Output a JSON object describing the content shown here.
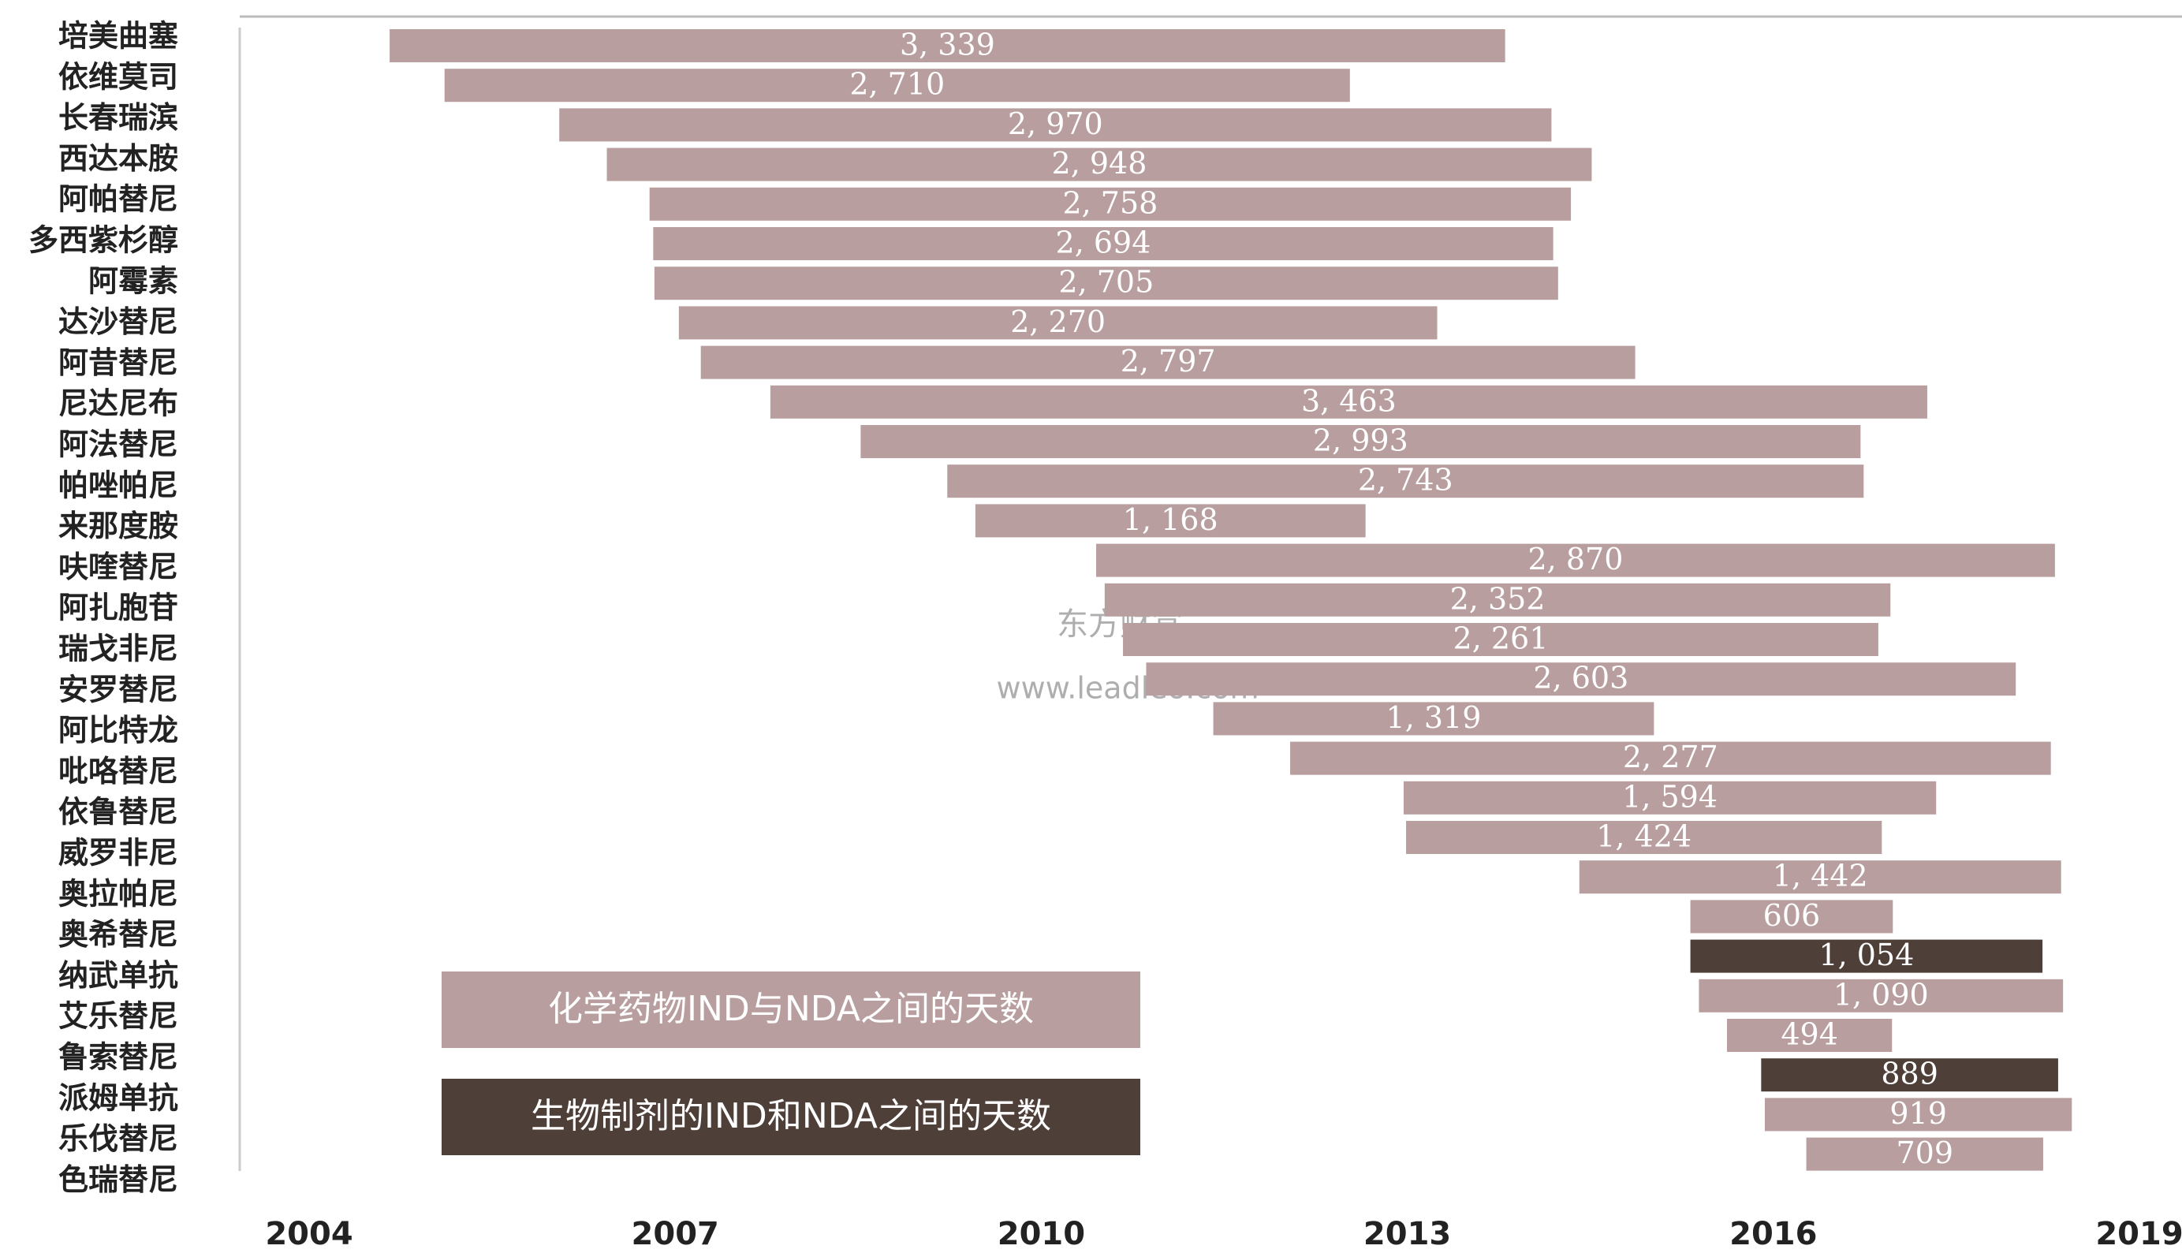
{
  "chart_data": {
    "type": "gantt",
    "categories": [
      "培美曲塞",
      "依维莫司",
      "长春瑞滨",
      "西达本胺",
      "阿帕替尼",
      "多西紫杉醇",
      "阿霉素",
      "达沙替尼",
      "阿昔替尼",
      "尼达尼布",
      "阿法替尼",
      "帕唑帕尼",
      "来那度胺",
      "呋喹替尼",
      "阿扎胞苷",
      "瑞戈非尼",
      "安罗替尼",
      "阿比特龙",
      "吡咯替尼",
      "依鲁替尼",
      "威罗非尼",
      "奥拉帕尼",
      "奥希替尼",
      "纳武单抗",
      "艾乐替尼",
      "鲁索替尼",
      "派姆单抗",
      "乐伐替尼",
      "色瑞替尼"
    ],
    "start": [
      2004.66,
      2005.11,
      2006.05,
      2006.44,
      2006.79,
      2006.82,
      2006.83,
      2007.03,
      2007.21,
      2007.78,
      2008.52,
      2009.23,
      2009.46,
      2010.45,
      2010.52,
      2010.67,
      2010.86,
      2011.41,
      2012.04,
      2012.97,
      2012.99,
      2014.41,
      2015.32,
      2015.32,
      2015.39,
      2015.62,
      2015.9,
      2015.93,
      2016.27
    ],
    "series": [
      {
        "name": "化学药物IND与NDA之间的天数",
        "color": "#b89e9e",
        "values": [
          3339,
          2710,
          2970,
          2948,
          2758,
          2694,
          2705,
          2270,
          2797,
          3463,
          2993,
          2743,
          1168,
          2870,
          2352,
          2261,
          2603,
          1319,
          2277,
          1594,
          1424,
          1442,
          606,
          null,
          1090,
          494,
          null,
          919,
          709
        ],
        "value_labels": [
          "3, 339",
          "2, 710",
          "2, 970",
          "2, 948",
          "2, 758",
          "2, 694",
          "2, 705",
          "2, 270",
          "2, 797",
          "3, 463",
          "2, 993",
          "2, 743",
          "1, 168",
          "2, 870",
          "2, 352",
          "2, 261",
          "2, 603",
          "1, 319",
          "2, 277",
          "1, 594",
          "1, 424",
          "1, 442",
          "606",
          null,
          "1, 090",
          "494",
          null,
          "919",
          "709"
        ]
      },
      {
        "name": "生物制剂的IND和NDA之间的天数",
        "color": "#4f3f39",
        "values": [
          null,
          null,
          null,
          null,
          null,
          null,
          null,
          null,
          null,
          null,
          null,
          null,
          null,
          null,
          null,
          null,
          null,
          null,
          null,
          null,
          null,
          null,
          null,
          1054,
          null,
          null,
          889,
          null,
          null
        ],
        "value_labels": [
          null,
          null,
          null,
          null,
          null,
          null,
          null,
          null,
          null,
          null,
          null,
          null,
          null,
          null,
          null,
          null,
          null,
          null,
          null,
          null,
          null,
          null,
          null,
          "1, 054",
          null,
          null,
          "889",
          null,
          null
        ]
      }
    ],
    "xlim": [
      2004,
      2019
    ],
    "xticks": [
      2004,
      2007,
      2010,
      2013,
      2016,
      2019
    ],
    "grid": false,
    "watermark": [
      "东方财富",
      "www.leadleo.com"
    ]
  }
}
